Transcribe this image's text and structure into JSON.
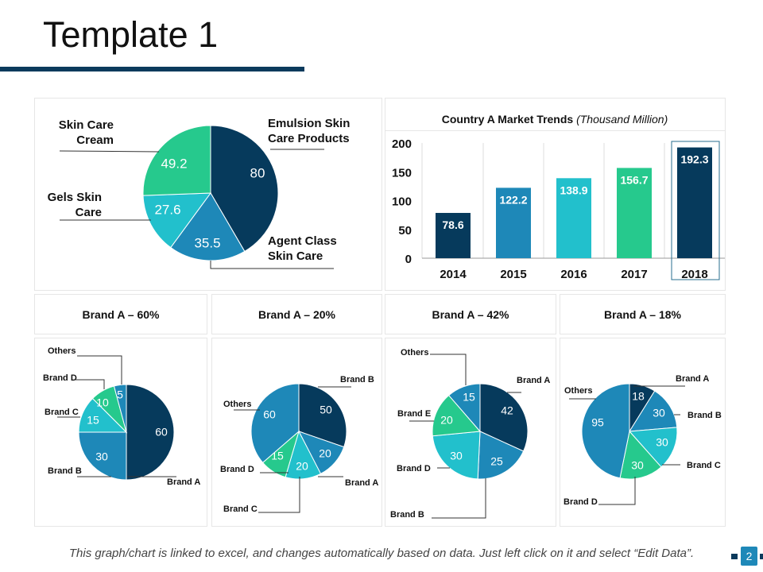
{
  "page": {
    "title": "Template 1",
    "footer": "This graph/chart is linked to excel, and changes automatically based on data. Just left click on it and select “Edit Data”.",
    "page_number": "2"
  },
  "colors": {
    "navy": "#063a5c",
    "blue": "#1e88b8",
    "teal": "#22c0cc",
    "green": "#26c98d"
  },
  "chart_data": [
    {
      "type": "pie",
      "categories": [
        "Emulsion Skin Care Products",
        "Agent Class Skin Care",
        "Gels Skin Care",
        "Skin Care Cream"
      ],
      "values": [
        80,
        35.5,
        27.6,
        49.2
      ],
      "data_labels": [
        "80",
        "35.5",
        "27.6",
        "49.2"
      ]
    },
    {
      "type": "bar",
      "title": "Country A Market Trends",
      "subtitle": "(Thousand Million)",
      "categories": [
        "2014",
        "2015",
        "2016",
        "2017",
        "2018"
      ],
      "values": [
        78.6,
        122.2,
        138.9,
        156.7,
        192.3
      ],
      "data_labels": [
        "78.6",
        "122.2",
        "138.9",
        "156.7",
        "192.3"
      ],
      "ylim": [
        0,
        200
      ],
      "yticks": [
        "0",
        "50",
        "100",
        "150",
        "200"
      ],
      "highlighted": "2018",
      "grid": "vertical"
    },
    {
      "type": "pie",
      "title": "Brand A – 60%",
      "categories": [
        "Brand A",
        "Brand B",
        "Brand C",
        "Brand D",
        "Others"
      ],
      "values": [
        60,
        30,
        15,
        10,
        5
      ],
      "data_labels": [
        "60",
        "30",
        "15",
        "10",
        "5"
      ]
    },
    {
      "type": "pie",
      "title": "Brand A – 20%",
      "categories": [
        "Brand B",
        "Brand A",
        "Brand C",
        "Brand D",
        "Others"
      ],
      "values": [
        50,
        20,
        20,
        15,
        60
      ],
      "data_labels": [
        "50",
        "20",
        "20",
        "15",
        "60"
      ]
    },
    {
      "type": "pie",
      "title": "Brand A – 42%",
      "categories": [
        "Brand A",
        "Brand B",
        "Brand D",
        "Brand E",
        "Others"
      ],
      "values": [
        42,
        25,
        30,
        20,
        15
      ],
      "data_labels": [
        "42",
        "25",
        "30",
        "20",
        "15"
      ]
    },
    {
      "type": "pie",
      "title": "Brand A – 18%",
      "categories": [
        "Brand A",
        "Brand B",
        "Brand C",
        "Brand D",
        "Others"
      ],
      "values": [
        18,
        30,
        30,
        30,
        95
      ],
      "data_labels": [
        "18",
        "30",
        "30",
        "30",
        "95"
      ]
    }
  ]
}
